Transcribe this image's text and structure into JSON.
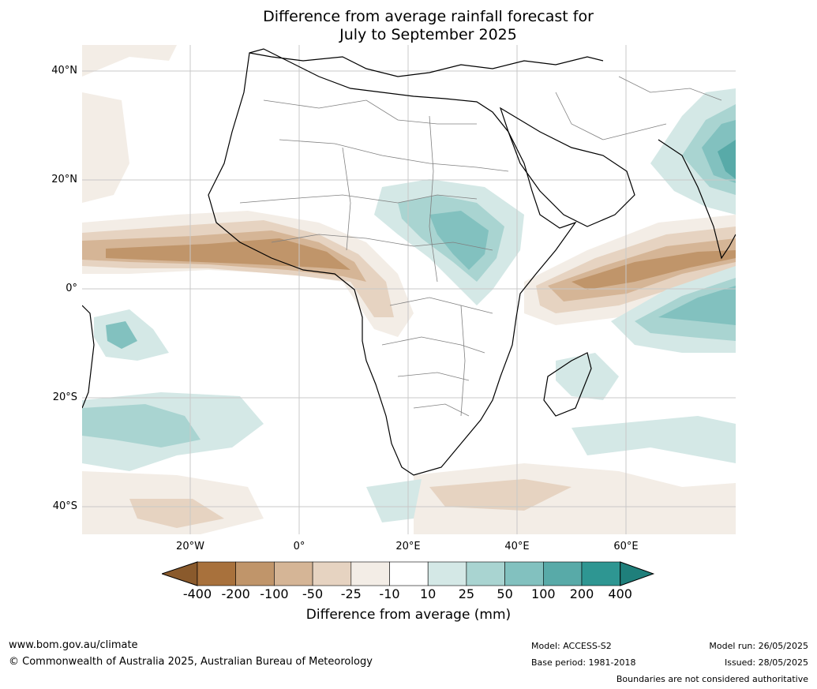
{
  "title_line1": "Difference from average rainfall forecast for",
  "title_line2": "July to September 2025",
  "lat_labels": [
    "40°N",
    "20°N",
    "0°",
    "20°S",
    "40°S"
  ],
  "lon_labels": [
    "20°W",
    "0°",
    "20°E",
    "40°E",
    "60°E"
  ],
  "colorbar": {
    "ticks": [
      "-400",
      "-200",
      "-100",
      "-50",
      "-25",
      "-10",
      "10",
      "25",
      "50",
      "100",
      "200",
      "400"
    ],
    "colors": [
      "#a8713c",
      "#c0956a",
      "#d5b596",
      "#e6d3c1",
      "#f3ede6",
      "#ffffff",
      "#d4e8e6",
      "#a9d4d1",
      "#82c1bf",
      "#58aaa8",
      "#2e9692"
    ],
    "extend_low_color": "#8a5a2c",
    "extend_high_color": "#1f7f7b",
    "label": "Difference from average (mm)"
  },
  "footer": {
    "website": "www.bom.gov.au/climate",
    "copyright": "© Commonwealth of Australia 2025, Australian Bureau of Meteorology",
    "model": "Model: ACCESS-S2",
    "base_period": "Base period: 1981-2018",
    "model_run": "Model run: 26/05/2025",
    "issued": "Issued: 28/05/2025",
    "disclaimer": "Boundaries are not considered authoritative"
  }
}
